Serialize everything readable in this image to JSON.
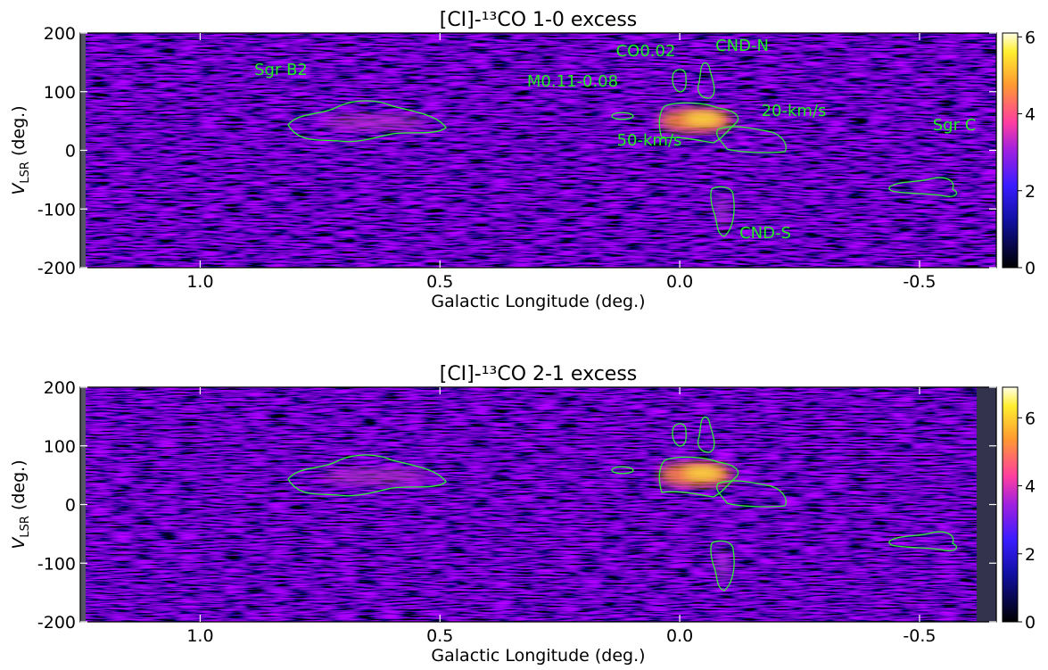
{
  "chart_data": [
    {
      "type": "heatmap",
      "title": "[CI]-¹³CO 1-0 excess",
      "x_label": "Galactic Longitude (deg.)",
      "y_label": {
        "symbol": "V",
        "subscript": "LSR",
        "unit": "(deg.)"
      },
      "xlim": [
        1.25,
        -0.66
      ],
      "xticks": [
        {
          "value": 1,
          "label": "1.0"
        },
        0.5,
        {
          "value": 0,
          "label": "0.0"
        },
        -0.5
      ],
      "ylim": [
        -200,
        200
      ],
      "yticks": [
        -200,
        -100,
        0,
        100,
        200
      ],
      "colorbar": {
        "clim": [
          0,
          6.1
        ],
        "ticks": [
          0,
          2,
          4,
          6
        ]
      },
      "annotations": [
        "Sgr B2",
        "M0.11-0.08",
        "CO0.02",
        "CND-N",
        "20-km/s",
        "50-km/s",
        "Sgr C",
        "CND-S"
      ]
    },
    {
      "type": "heatmap",
      "title": "[CI]-¹³CO 2-1 excess",
      "x_label": "Galactic Longitude (deg.)",
      "y_label": {
        "symbol": "V",
        "subscript": "LSR",
        "unit": "(deg.)"
      },
      "xlim": [
        1.25,
        -0.66
      ],
      "xticks": [
        {
          "value": 1,
          "label": "1.0"
        },
        0.5,
        {
          "value": 0,
          "label": "0.0"
        },
        -0.5
      ],
      "ylim": [
        -200,
        200
      ],
      "yticks": [
        -200,
        -100,
        0,
        100,
        200
      ],
      "colorbar": {
        "clim": [
          0,
          6.9
        ],
        "ticks": [
          0,
          2,
          4,
          6
        ]
      }
    }
  ]
}
